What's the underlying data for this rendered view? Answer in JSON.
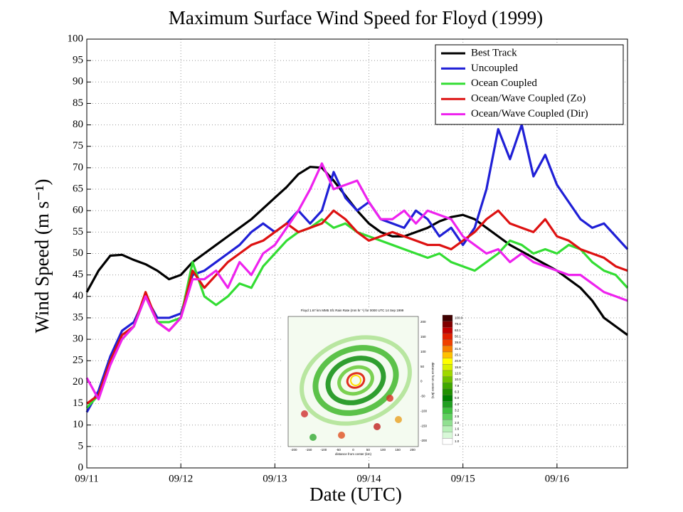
{
  "chart_data": {
    "type": "line",
    "title": "Maximum Surface Wind Speed for Floyd (1999)",
    "xlabel": "Date (UTC)",
    "ylabel": "Wind Speed (m s⁻¹)",
    "x": [
      0,
      0.125,
      0.25,
      0.375,
      0.5,
      0.625,
      0.75,
      0.875,
      1,
      1.125,
      1.25,
      1.375,
      1.5,
      1.625,
      1.75,
      1.875,
      2,
      2.125,
      2.25,
      2.375,
      2.5,
      2.625,
      2.75,
      2.875,
      3,
      3.125,
      3.25,
      3.375,
      3.5,
      3.625,
      3.75,
      3.875,
      4,
      4.125,
      4.25,
      4.375,
      4.5,
      4.625,
      4.75,
      4.875,
      5,
      5.125,
      5.25,
      5.375,
      5.5,
      5.625,
      5.75
    ],
    "xlim": [
      0,
      5.75
    ],
    "xticks": [
      {
        "value": 0,
        "label": "09/11"
      },
      {
        "value": 1,
        "label": "09/12"
      },
      {
        "value": 2,
        "label": "09/13"
      },
      {
        "value": 3,
        "label": "09/14"
      },
      {
        "value": 4,
        "label": "09/15"
      },
      {
        "value": 5,
        "label": "09/16"
      }
    ],
    "ylim": [
      0,
      100
    ],
    "yticks": [
      0,
      5,
      10,
      15,
      20,
      25,
      30,
      35,
      40,
      45,
      50,
      55,
      60,
      65,
      70,
      75,
      80,
      85,
      90,
      95,
      100
    ],
    "grid": true,
    "legend": "upper right",
    "series": [
      {
        "name": "Best Track",
        "color": "#000000",
        "values": [
          41,
          46,
          49.5,
          49.7,
          48.5,
          47.5,
          46,
          44,
          45,
          48,
          50,
          52,
          54,
          56,
          58,
          60.5,
          63,
          65.5,
          68.5,
          70.2,
          70,
          67,
          63.5,
          60,
          57,
          55,
          54,
          54,
          55,
          56,
          57.5,
          58.5,
          59,
          58,
          56,
          54,
          52,
          50.5,
          49,
          47.5,
          46,
          44,
          42,
          39,
          35,
          33,
          31
        ]
      },
      {
        "name": "Uncoupled",
        "color": "#1f1fd6",
        "values": [
          13,
          18,
          26,
          32,
          34,
          40,
          35,
          35,
          36,
          45,
          46,
          48,
          50,
          52,
          55,
          57,
          55,
          57,
          60,
          57,
          60,
          69,
          63,
          60,
          62,
          58,
          57,
          56,
          60,
          58,
          54,
          56,
          52,
          56,
          65,
          79,
          72,
          80,
          68,
          73,
          66,
          62,
          58,
          56,
          57,
          54,
          51
        ]
      },
      {
        "name": "Ocean Coupled",
        "color": "#33dd33",
        "values": [
          14,
          17,
          25,
          30,
          33,
          40,
          34,
          34,
          35,
          48,
          40,
          38,
          40,
          43,
          42,
          47,
          50,
          53,
          55,
          56,
          58,
          56,
          57,
          55,
          54,
          53,
          52,
          51,
          50,
          49,
          50,
          48,
          47,
          46,
          48,
          50,
          53,
          52,
          50,
          51,
          50,
          52,
          51,
          48,
          46,
          45,
          42
        ]
      },
      {
        "name": "Ocean/Wave Coupled (Zo)",
        "color": "#dd1111",
        "values": [
          15,
          17,
          25,
          31,
          33,
          41,
          34,
          32,
          35,
          46,
          42,
          45,
          48,
          50,
          52,
          53,
          55,
          57,
          55,
          56,
          57,
          60,
          58,
          55,
          53,
          54,
          55,
          54,
          53,
          52,
          52,
          51,
          53,
          55,
          58,
          60,
          57,
          56,
          55,
          58,
          54,
          53,
          51,
          50,
          49,
          47,
          46
        ]
      },
      {
        "name": "Ocean/Wave Coupled (Dir)",
        "color": "#ee22ee",
        "values": [
          21,
          16,
          24,
          30,
          33,
          40,
          34,
          32,
          35,
          44,
          44,
          46,
          42,
          48,
          45,
          50,
          52,
          56,
          60,
          65,
          71,
          65,
          66,
          67,
          62,
          58,
          58,
          60,
          57,
          60,
          59,
          58,
          54,
          52,
          50,
          51,
          48,
          50,
          48,
          47,
          46,
          45,
          45,
          43,
          41,
          40,
          39
        ]
      }
    ]
  },
  "inset": {
    "title": "Floyd 1.67 km MM5 Sfc Rain Rate (mm hr⁻¹) for 0000 UTC 14 Sep 1999",
    "xlabel": "distance from center (km)",
    "ylabel": "distance from center (km)",
    "xticks": [
      "-200",
      "-150",
      "-100",
      "-50",
      "0",
      "50",
      "100",
      "150",
      "200"
    ],
    "yticks": [
      "200",
      "150",
      "100",
      "50",
      "0",
      "-50",
      "-100",
      "-150",
      "-200"
    ],
    "colorbar": [
      "100.0",
      "79.4",
      "63.1",
      "50.1",
      "39.8",
      "31.6",
      "25.1",
      "20.0",
      "15.8",
      "12.6",
      "10.0",
      "7.9",
      "6.3",
      "5.0",
      "4.0",
      "3.2",
      "2.5",
      "2.0",
      "1.6",
      "1.3",
      "1.0"
    ]
  }
}
